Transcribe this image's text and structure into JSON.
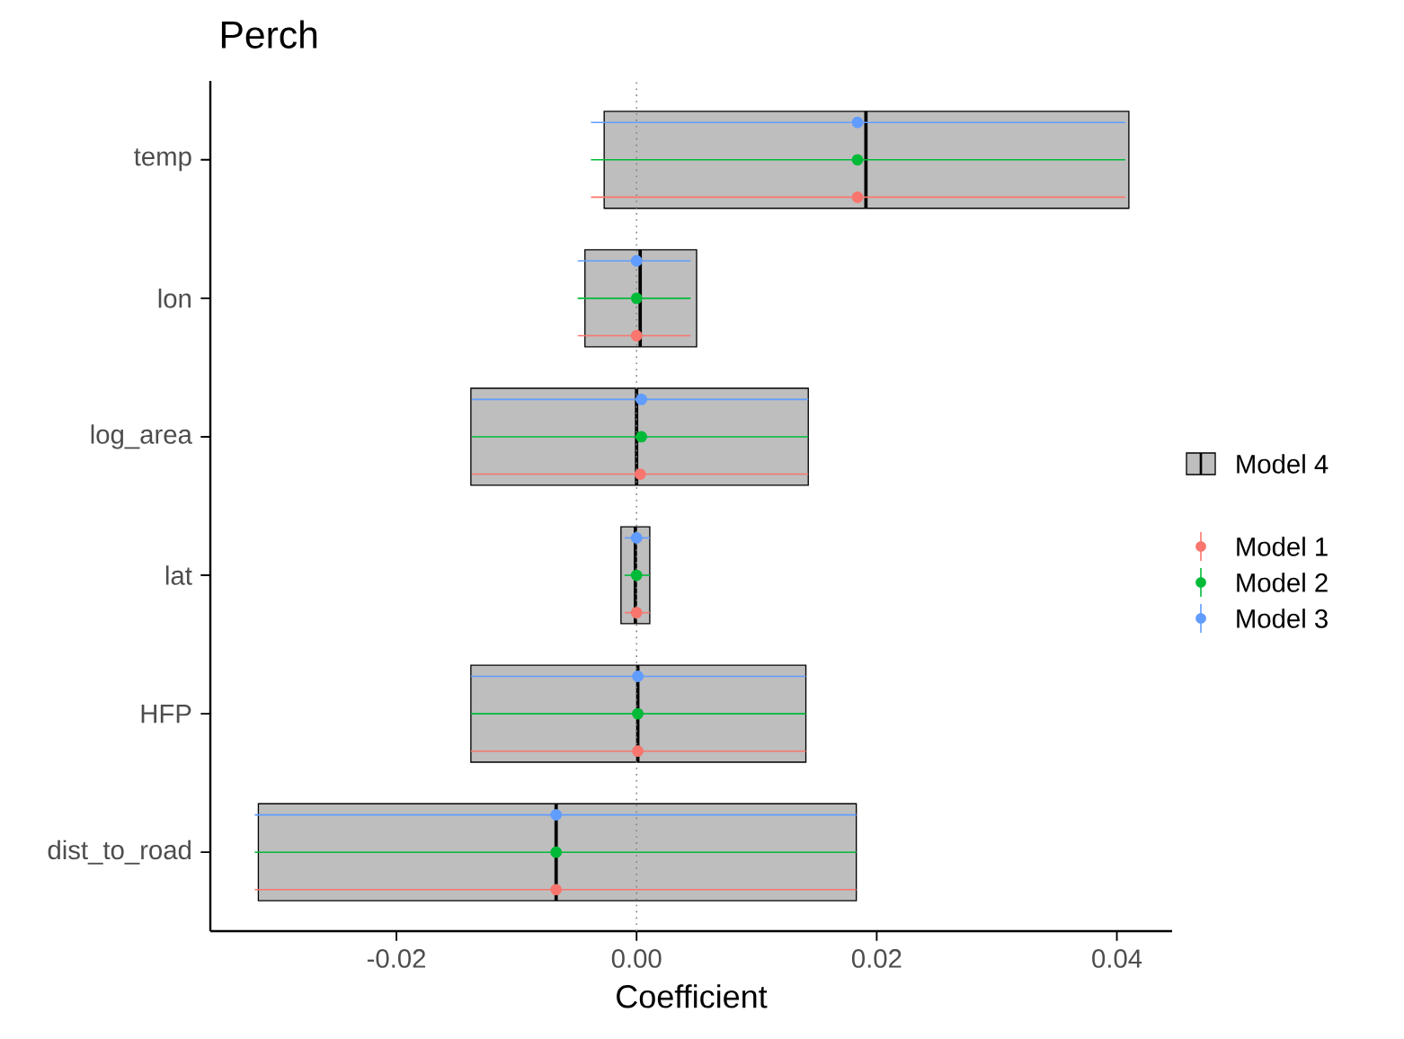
{
  "chart_data": {
    "type": "scatter",
    "orientation": "horizontal",
    "title": "Perch",
    "xlabel": "Coefficient",
    "categories": [
      "temp",
      "lon",
      "log_area",
      "lat",
      "HFP",
      "dist_to_road"
    ],
    "xlim": [
      -0.0355,
      0.0446
    ],
    "xticks": [
      {
        "value": -0.02,
        "label": "-0.02"
      },
      {
        "value": 0,
        "label": "0.00"
      },
      {
        "value": 0.02,
        "label": "0.02"
      },
      {
        "value": 0.04,
        "label": "0.04"
      }
    ],
    "grid": false,
    "legend": "right",
    "marker": "circle",
    "ref_lines": [
      {
        "axis": "x",
        "value": 0,
        "line_style": "dotted",
        "color": "#808080"
      }
    ],
    "series": [
      {
        "name": "Model 4",
        "type": "box",
        "color": "#bebebe",
        "boxes": [
          {
            "low": -0.0027,
            "q1": -0.0027,
            "median": 0.0191,
            "q3": 0.041,
            "high": 0.041
          },
          {
            "low": -0.0043,
            "q1": -0.0043,
            "median": 0.0003,
            "q3": 0.005,
            "high": 0.005
          },
          {
            "low": -0.0138,
            "q1": -0.0138,
            "median": 0.0,
            "q3": 0.0143,
            "high": 0.0143
          },
          {
            "low": -0.0013,
            "q1": -0.0013,
            "median": -0.0001,
            "q3": 0.0011,
            "high": 0.0011
          },
          {
            "low": -0.0138,
            "q1": -0.0138,
            "median": 0.0001,
            "q3": 0.0141,
            "high": 0.0141
          },
          {
            "low": -0.0315,
            "q1": -0.0315,
            "median": -0.0067,
            "q3": 0.0183,
            "high": 0.0183
          }
        ]
      },
      {
        "name": "Model 1",
        "color": "#f8766d",
        "values": [
          0.0184,
          0.0,
          0.0003,
          0.0,
          0.0001,
          -0.0067
        ],
        "errors": [
          [
            -0.0038,
            0.0407
          ],
          [
            -0.0049,
            0.0045
          ],
          [
            -0.0137,
            0.0143
          ],
          [
            -0.001,
            0.0011
          ],
          [
            -0.0138,
            0.0141
          ],
          [
            -0.0318,
            0.0183
          ]
        ]
      },
      {
        "name": "Model 2",
        "color": "#00ba38",
        "values": [
          0.0184,
          0.0,
          0.0004,
          0.0,
          0.0001,
          -0.0067
        ],
        "errors": [
          [
            -0.0038,
            0.0407
          ],
          [
            -0.0049,
            0.0045
          ],
          [
            -0.0137,
            0.0143
          ],
          [
            -0.001,
            0.0011
          ],
          [
            -0.0138,
            0.0141
          ],
          [
            -0.0318,
            0.0183
          ]
        ]
      },
      {
        "name": "Model 3",
        "color": "#619cff",
        "values": [
          0.0184,
          0.0,
          0.0004,
          0.0,
          0.0001,
          -0.0067
        ],
        "errors": [
          [
            -0.0038,
            0.0407
          ],
          [
            -0.0049,
            0.0045
          ],
          [
            -0.0137,
            0.0143
          ],
          [
            -0.001,
            0.0011
          ],
          [
            -0.0138,
            0.0141
          ],
          [
            -0.0318,
            0.0183
          ]
        ]
      }
    ]
  }
}
